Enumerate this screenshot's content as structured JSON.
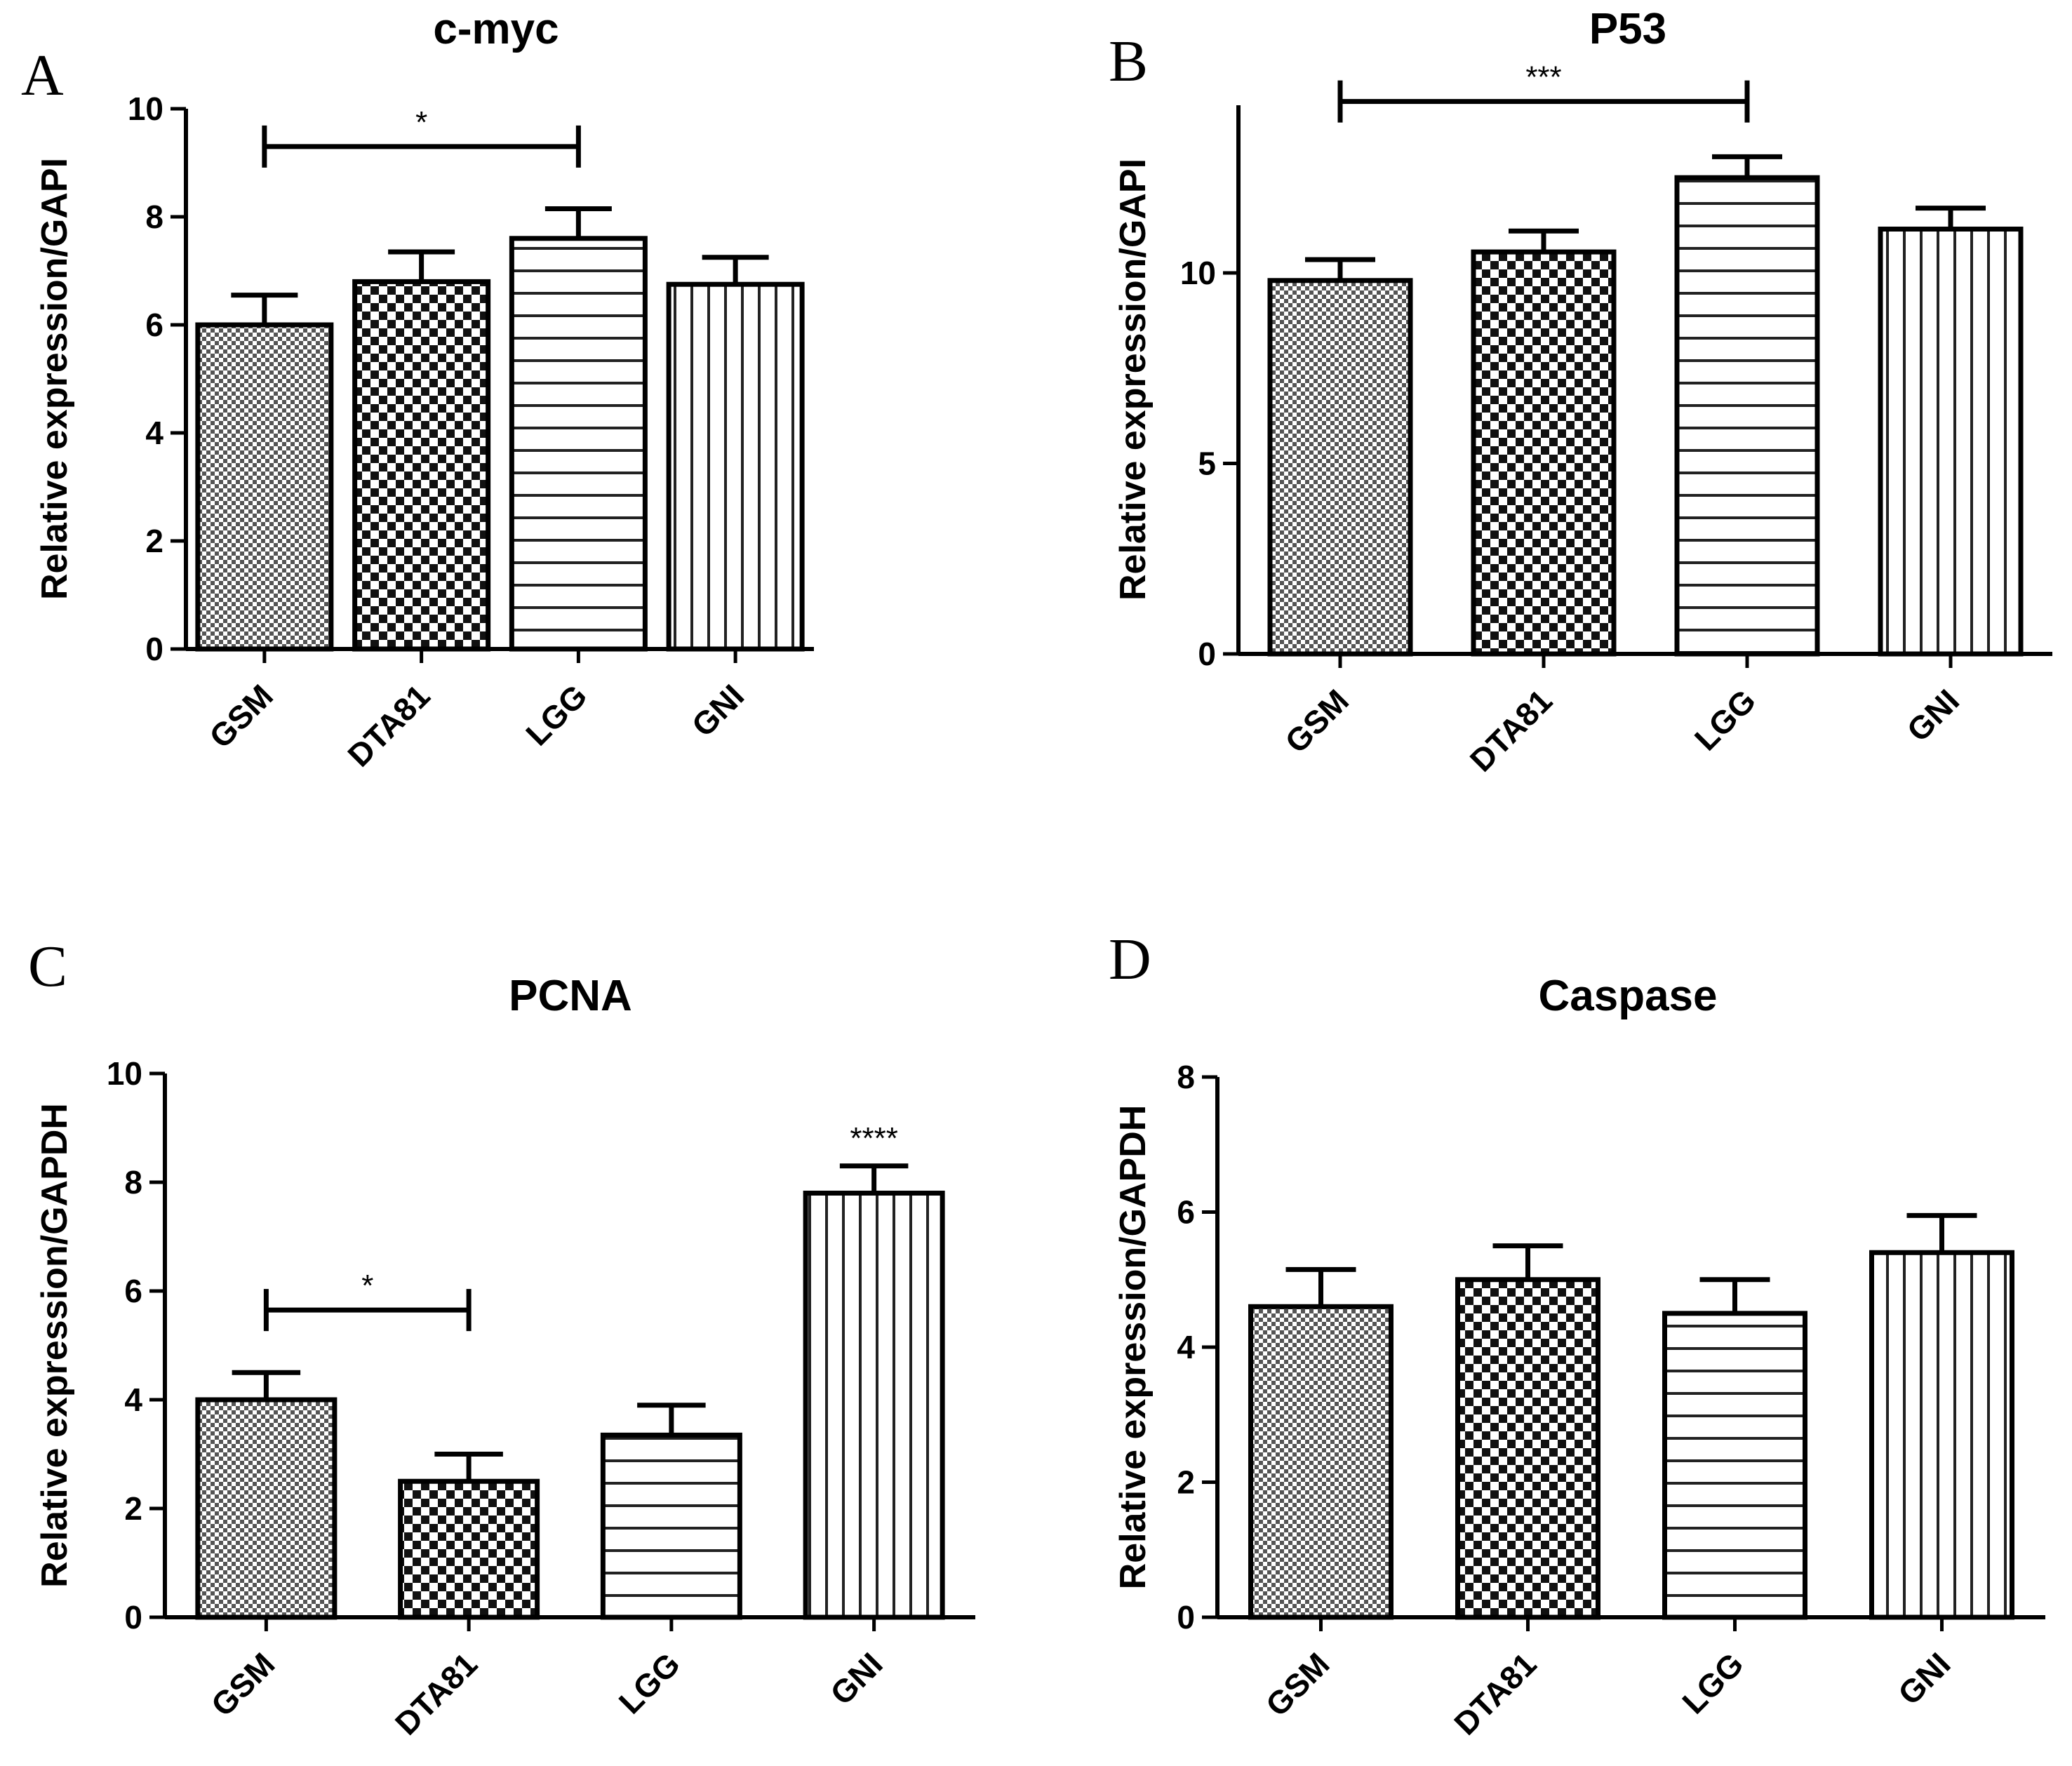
{
  "figure": {
    "panel_letters": [
      "A",
      "B",
      "C",
      "D"
    ]
  },
  "chart_data": [
    {
      "panel": "A",
      "type": "bar",
      "title": "c-myc",
      "xlabel": "",
      "ylabel": "Relative expression/GAPI",
      "categories": [
        "GSM",
        "DTA81",
        "LGG",
        "GNI"
      ],
      "patterns": [
        "fine-check",
        "checker",
        "horizontal",
        "vertical"
      ],
      "series": [
        {
          "name": "c-myc",
          "values": [
            6.0,
            6.8,
            7.6,
            6.75
          ],
          "errors": [
            0.55,
            0.55,
            0.55,
            0.5
          ]
        }
      ],
      "ylim": [
        0,
        10
      ],
      "yticks": [
        0,
        2,
        4,
        6,
        8,
        10
      ],
      "ytick_labels": [
        "0",
        "2",
        "4",
        "6",
        "8",
        "10"
      ],
      "significance": [
        {
          "from": 0,
          "to": 2,
          "y": 9.3,
          "label": "*"
        }
      ]
    },
    {
      "panel": "B",
      "type": "bar",
      "title": "P53",
      "xlabel": "",
      "ylabel": "Relative expression/GAPI",
      "categories": [
        "GSM",
        "DTA81",
        "LGG",
        "GNI"
      ],
      "patterns": [
        "fine-check",
        "checker",
        "horizontal",
        "vertical"
      ],
      "series": [
        {
          "name": "P53",
          "values": [
            9.8,
            10.55,
            12.5,
            11.15
          ],
          "errors": [
            0.55,
            0.55,
            0.55,
            0.55
          ]
        }
      ],
      "ylim": [
        0,
        14
      ],
      "yticks": [
        0,
        5,
        10
      ],
      "ytick_labels": [
        "0",
        "5",
        "10"
      ],
      "significance": [
        {
          "from": 0,
          "to": 2,
          "y": 14.5,
          "label": "***"
        }
      ]
    },
    {
      "panel": "C",
      "type": "bar",
      "title": "PCNA",
      "xlabel": "",
      "ylabel": "Relative expression/GAPDH",
      "categories": [
        "GSM",
        "DTA81",
        "LGG",
        "GNI"
      ],
      "patterns": [
        "fine-check",
        "checker",
        "horizontal",
        "vertical"
      ],
      "series": [
        {
          "name": "PCNA",
          "values": [
            4.0,
            2.5,
            3.35,
            7.8
          ],
          "errors": [
            0.5,
            0.5,
            0.55,
            0.5
          ]
        }
      ],
      "ylim": [
        0,
        10
      ],
      "yticks": [
        0,
        2,
        4,
        6,
        8,
        10
      ],
      "ytick_labels": [
        "0",
        "2",
        "4",
        "6",
        "8",
        "10"
      ],
      "significance": [
        {
          "from": 0,
          "to": 1,
          "y": 5.65,
          "label": "*"
        }
      ],
      "bar_annotations": [
        {
          "index": 3,
          "label": "****"
        }
      ]
    },
    {
      "panel": "D",
      "type": "bar",
      "title": "Caspase",
      "xlabel": "",
      "ylabel": "Relative expression/GAPDH",
      "categories": [
        "GSM",
        "DTA81",
        "LGG",
        "GNI"
      ],
      "patterns": [
        "fine-check",
        "checker",
        "horizontal",
        "vertical"
      ],
      "series": [
        {
          "name": "Caspase",
          "values": [
            4.6,
            5.0,
            4.5,
            5.4
          ],
          "errors": [
            0.55,
            0.5,
            0.5,
            0.55
          ]
        }
      ],
      "ylim": [
        0,
        8
      ],
      "yticks": [
        0,
        2,
        4,
        6,
        8
      ],
      "ytick_labels": [
        "0",
        "2",
        "4",
        "6",
        "8"
      ],
      "significance": []
    }
  ]
}
